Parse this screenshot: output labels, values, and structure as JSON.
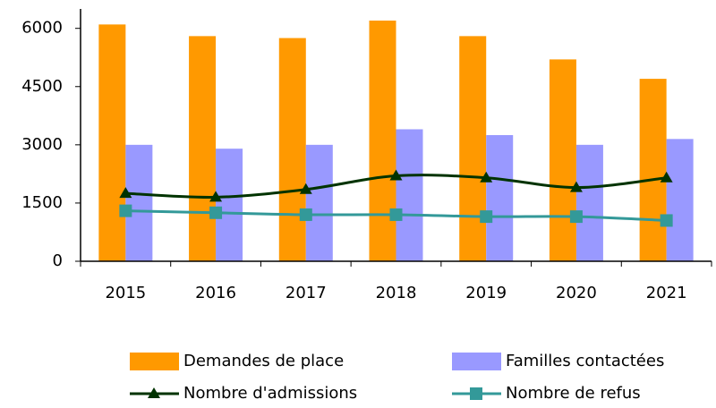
{
  "chart_data": {
    "type": "bar",
    "categories": [
      "2015",
      "2016",
      "2017",
      "2018",
      "2019",
      "2020",
      "2021"
    ],
    "series": [
      {
        "name": "Demandes de place",
        "color": "#ff9900",
        "type": "bar",
        "values": [
          6100,
          5800,
          5750,
          6200,
          5800,
          5200,
          4700
        ]
      },
      {
        "name": "Familles contactées",
        "color": "#9999ff",
        "type": "bar",
        "values": [
          3000,
          2900,
          3000,
          3400,
          3250,
          3000,
          3150
        ]
      },
      {
        "name": "Nombre d'admissions",
        "color": "#003300",
        "type": "line",
        "marker": "triangle",
        "values": [
          1750,
          1650,
          1850,
          2200,
          2150,
          1900,
          2150
        ]
      },
      {
        "name": "Nombre de refus",
        "color": "#339999",
        "type": "line",
        "marker": "square",
        "values": [
          1300,
          1250,
          1200,
          1200,
          1150,
          1150,
          1050
        ]
      }
    ],
    "ylim": [
      0,
      6500
    ],
    "yticks": [
      0,
      1500,
      3000,
      4500,
      6000
    ],
    "grid": false,
    "legend": "bottom"
  }
}
